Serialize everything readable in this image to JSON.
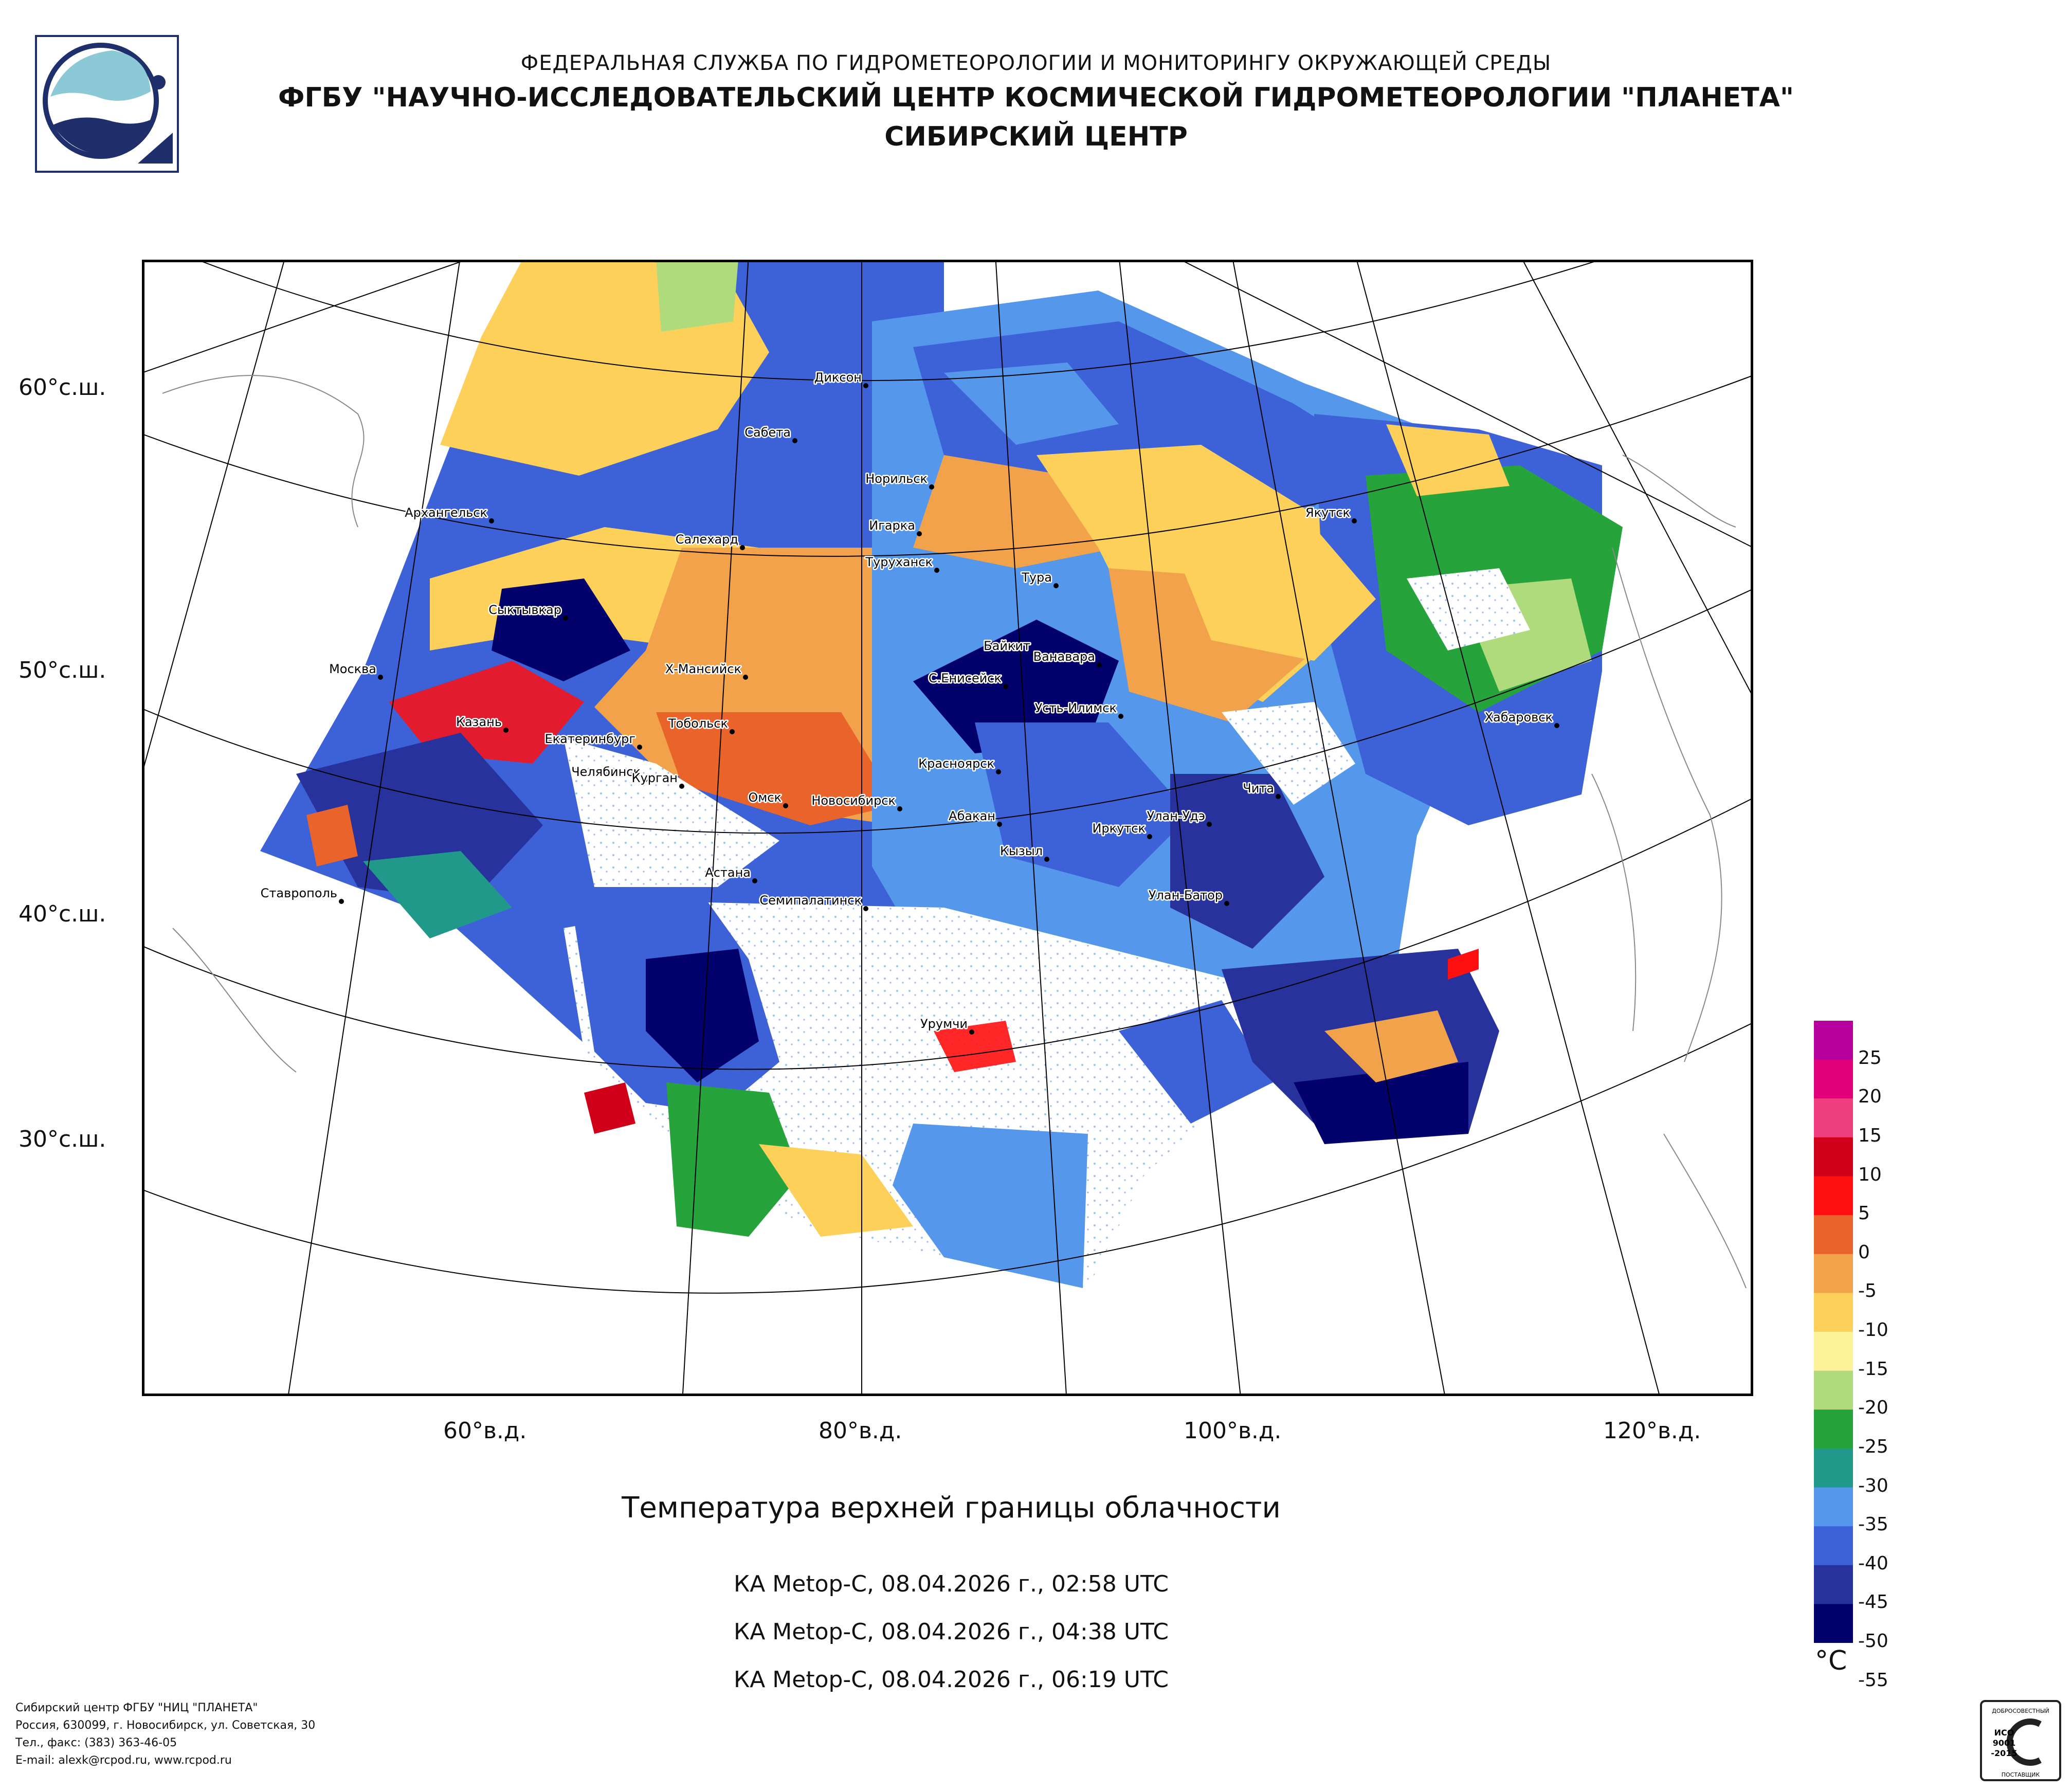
{
  "header": {
    "line1": "ФЕДЕРАЛЬНАЯ СЛУЖБА ПО ГИДРОМЕТЕОРОЛОГИИ И МОНИТОРИНГУ ОКРУЖАЮЩЕЙ СРЕДЫ",
    "line2": "ФГБУ \"НАУЧНО-ИССЛЕДОВАТЕЛЬСКИЙ ЦЕНТР КОСМИЧЕСКОЙ ГИДРОМЕТЕОРОЛОГИИ \"ПЛАНЕТА\"",
    "line3": "СИБИРСКИЙ ЦЕНТР"
  },
  "map": {
    "lat_labels": [
      "60°с.ш.",
      "50°с.ш.",
      "40°с.ш.",
      "30°с.ш."
    ],
    "lon_labels": [
      "60°в.д.",
      "80°в.д.",
      "100°в.д.",
      "120°в.д."
    ],
    "cities": [
      "Диксон",
      "Сабета",
      "Норильск",
      "Архангельск",
      "Игарка",
      "Салехард",
      "Туруханск",
      "Якутск",
      "Тура",
      "Сыктывкар",
      "Байкит",
      "Ванавара",
      "Москва",
      "Х-Мансийск",
      "С.Енисейск",
      "Усть-Илимск",
      "Хабаровск",
      "Казань",
      "Тобольск",
      "Екатеринбург",
      "Красноярск",
      "Челябинск",
      "Курган",
      "Чита",
      "Омск",
      "Новосибирск",
      "Абакан",
      "Улан-Удэ",
      "Иркутск",
      "Кызыл",
      "Астана",
      "Ставрополь",
      "Семипалатинск",
      "Улан-Батор",
      "Урумчи"
    ]
  },
  "title": "Температура верхней границы облачности",
  "passes": [
    "КА Metop-C, 08.04.2026 г., 02:58 UTC",
    "КА Metop-C, 08.04.2026 г., 04:38 UTC",
    "КА Metop-C, 08.04.2026 г., 06:19 UTC"
  ],
  "legend": {
    "unit": "°C",
    "labels": [
      "25",
      "20",
      "15",
      "10",
      "5",
      "0",
      "-5",
      "-10",
      "-15",
      "-20",
      "-25",
      "-30",
      "-35",
      "-40",
      "-45",
      "-50",
      "-55"
    ],
    "colors": [
      "#b5009e",
      "#e2007a",
      "#ee3e7e",
      "#d0001a",
      "#ff1010",
      "#e8642a",
      "#f2a24a",
      "#fdd05a",
      "#fff39a",
      "#afdb7c",
      "#27a33c",
      "#20998a",
      "#5597ea",
      "#3d62d8",
      "#27329c",
      "#02006b"
    ]
  },
  "footer": {
    "lines": [
      "Сибирский центр ФГБУ \"НИЦ \"ПЛАНЕТА\"",
      "Россия, 630099, г. Новосибирск, ул. Советская, 30",
      "Тел., факс: (383) 363-46-05",
      "E-mail: alexk@rcpod.ru, www.rcpod.ru"
    ]
  },
  "iso_badge": {
    "top": "ДОБРОСОВЕСТНЫЙ",
    "l1": "ИСО",
    "l2": "9001",
    "l3": "-2015",
    "bottom": "ПОСТАВЩИК"
  }
}
